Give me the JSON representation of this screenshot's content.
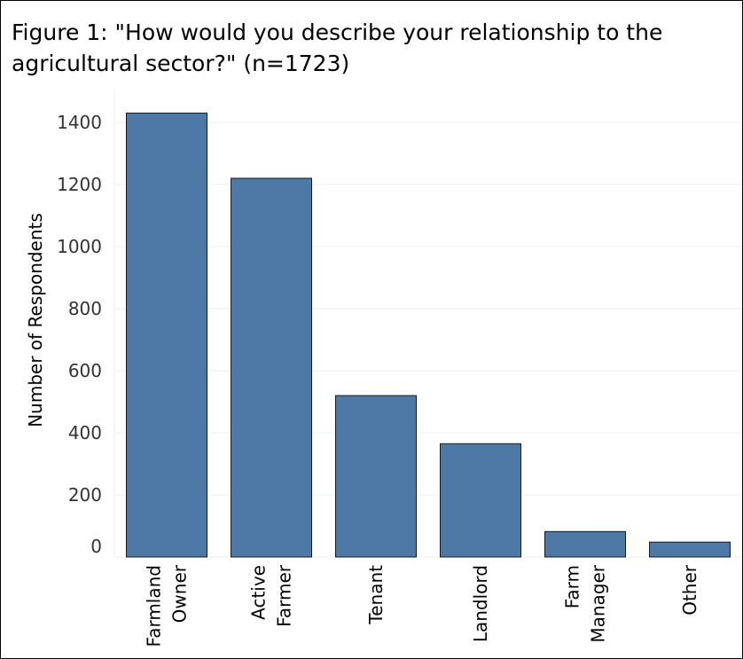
{
  "chart_data": {
    "type": "bar",
    "title": "Figure 1: \"How would you describe your relationship to the agricultural sector?\" (n=1723)",
    "xlabel": "",
    "ylabel": "Number of Respondents",
    "ylim": [
      0,
      1500
    ],
    "yticks": [
      0,
      200,
      400,
      600,
      800,
      1000,
      1200,
      1400
    ],
    "grid": true,
    "categories": [
      [
        "Farmland",
        "Owner"
      ],
      [
        "Active",
        "Farmer"
      ],
      [
        "Tenant"
      ],
      [
        "Landlord"
      ],
      [
        "Farm",
        "Manager"
      ],
      [
        "Other"
      ]
    ],
    "values": [
      1430,
      1220,
      520,
      365,
      82,
      48
    ],
    "colors": {
      "bar": "#4e79a7",
      "bar_stroke": "#1a1a1a",
      "grid": "#efefef"
    }
  }
}
